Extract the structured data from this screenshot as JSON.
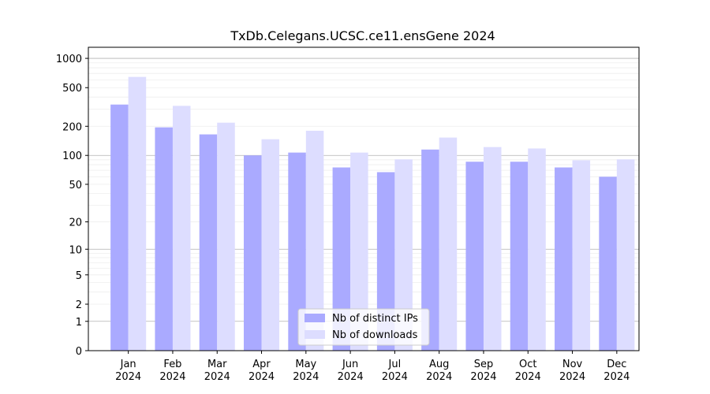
{
  "chart_data": {
    "type": "bar",
    "title": "TxDb.Celegans.UCSC.ce11.ensGene 2024",
    "xlabel": "",
    "ylabel": "",
    "y_scale": "log1p",
    "ylim": [
      0,
      1300
    ],
    "y_ticks": [
      {
        "value": 0,
        "label": "0"
      },
      {
        "value": 1,
        "label": "1"
      },
      {
        "value": 2,
        "label": "2"
      },
      {
        "value": 5,
        "label": "5"
      },
      {
        "value": 10,
        "label": "10"
      },
      {
        "value": 20,
        "label": "20"
      },
      {
        "value": 50,
        "label": "50"
      },
      {
        "value": 100,
        "label": "100"
      },
      {
        "value": 200,
        "label": "200"
      },
      {
        "value": 500,
        "label": "500"
      },
      {
        "value": 1000,
        "label": "1000"
      }
    ],
    "categories": [
      {
        "month": "Jan",
        "year": "2024"
      },
      {
        "month": "Feb",
        "year": "2024"
      },
      {
        "month": "Mar",
        "year": "2024"
      },
      {
        "month": "Apr",
        "year": "2024"
      },
      {
        "month": "May",
        "year": "2024"
      },
      {
        "month": "Jun",
        "year": "2024"
      },
      {
        "month": "Jul",
        "year": "2024"
      },
      {
        "month": "Aug",
        "year": "2024"
      },
      {
        "month": "Sep",
        "year": "2024"
      },
      {
        "month": "Oct",
        "year": "2024"
      },
      {
        "month": "Nov",
        "year": "2024"
      },
      {
        "month": "Dec",
        "year": "2024"
      }
    ],
    "series": [
      {
        "name": "Nb of distinct IPs",
        "color": "#aaaaff",
        "values": [
          335,
          195,
          165,
          100,
          107,
          75,
          67,
          115,
          86,
          86,
          75,
          60
        ]
      },
      {
        "name": "Nb of downloads",
        "color": "#ddddff",
        "values": [
          645,
          325,
          218,
          147,
          180,
          107,
          91,
          153,
          122,
          118,
          89,
          91
        ]
      }
    ],
    "grid": true,
    "legend_position": "bottom-center"
  }
}
